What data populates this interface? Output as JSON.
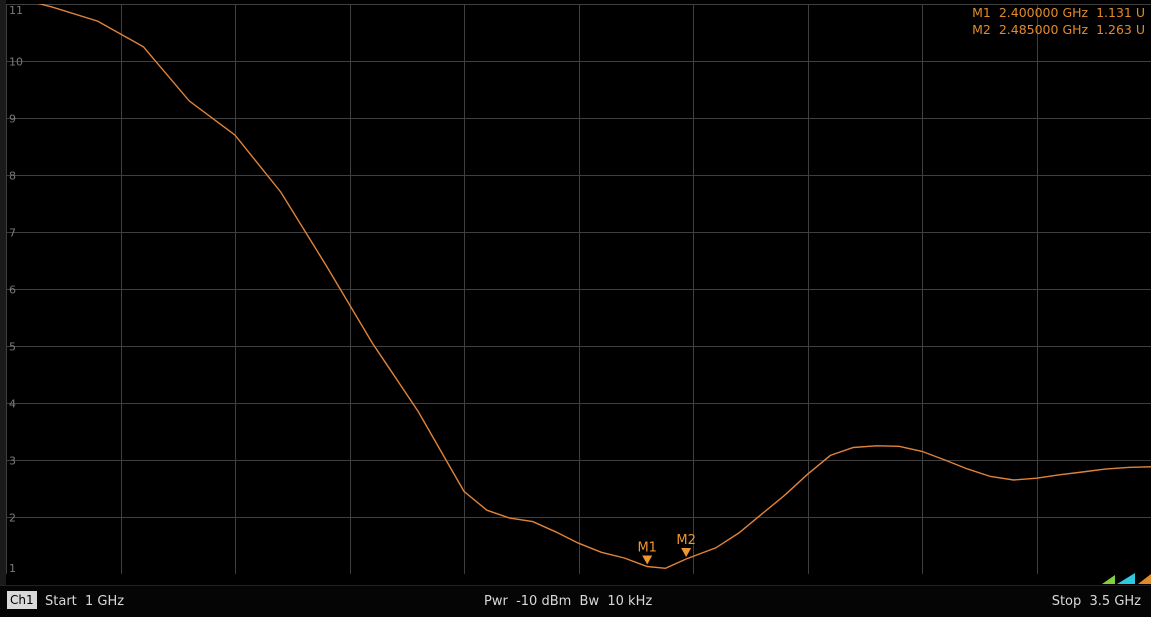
{
  "chart_data": {
    "type": "line",
    "x_range_ghz": [
      1,
      3.5
    ],
    "ylim": [
      1,
      11
    ],
    "y_ticks": [
      "11",
      "10",
      "9",
      "8",
      "7",
      "6",
      "5",
      "4",
      "3",
      "2",
      "1"
    ],
    "x_divisions": 10,
    "grid": true,
    "trace_color": "#e0833a",
    "series": [
      {
        "points": [
          [
            1.0,
            11.15
          ],
          [
            1.1,
            10.95
          ],
          [
            1.2,
            10.7
          ],
          [
            1.3,
            10.25
          ],
          [
            1.4,
            9.3
          ],
          [
            1.5,
            8.7
          ],
          [
            1.6,
            7.7
          ],
          [
            1.7,
            6.4
          ],
          [
            1.8,
            5.05
          ],
          [
            1.9,
            3.85
          ],
          [
            2.0,
            2.45
          ],
          [
            2.05,
            2.12
          ],
          [
            2.1,
            1.98
          ],
          [
            2.15,
            1.92
          ],
          [
            2.2,
            1.74
          ],
          [
            2.25,
            1.54
          ],
          [
            2.3,
            1.38
          ],
          [
            2.35,
            1.28
          ],
          [
            2.4,
            1.131
          ],
          [
            2.44,
            1.1
          ],
          [
            2.485,
            1.263
          ],
          [
            2.55,
            1.46
          ],
          [
            2.6,
            1.72
          ],
          [
            2.7,
            2.38
          ],
          [
            2.75,
            2.75
          ],
          [
            2.8,
            3.08
          ],
          [
            2.85,
            3.22
          ],
          [
            2.9,
            3.25
          ],
          [
            2.95,
            3.24
          ],
          [
            3.0,
            3.15
          ],
          [
            3.05,
            3.0
          ],
          [
            3.1,
            2.84
          ],
          [
            3.15,
            2.71
          ],
          [
            3.2,
            2.65
          ],
          [
            3.25,
            2.68
          ],
          [
            3.3,
            2.74
          ],
          [
            3.35,
            2.79
          ],
          [
            3.4,
            2.84
          ],
          [
            3.45,
            2.87
          ],
          [
            3.5,
            2.88
          ]
        ]
      }
    ],
    "markers": [
      {
        "label": "M1",
        "x": 2.4,
        "y": 1.131
      },
      {
        "label": "M2",
        "x": 2.485,
        "y": 1.263
      }
    ]
  },
  "marker_readout": [
    {
      "name": "M1",
      "freq": "2.400000",
      "freq_unit": "GHz",
      "value": "1.131",
      "unit": "U"
    },
    {
      "name": "M2",
      "freq": "2.485000",
      "freq_unit": "GHz",
      "value": "1.263",
      "unit": "U"
    }
  ],
  "status": {
    "channel": "Ch1",
    "start": "Start  1 GHz",
    "center": "Pwr  -10 dBm  Bw  10 kHz",
    "stop": "Stop  3.5 GHz"
  }
}
